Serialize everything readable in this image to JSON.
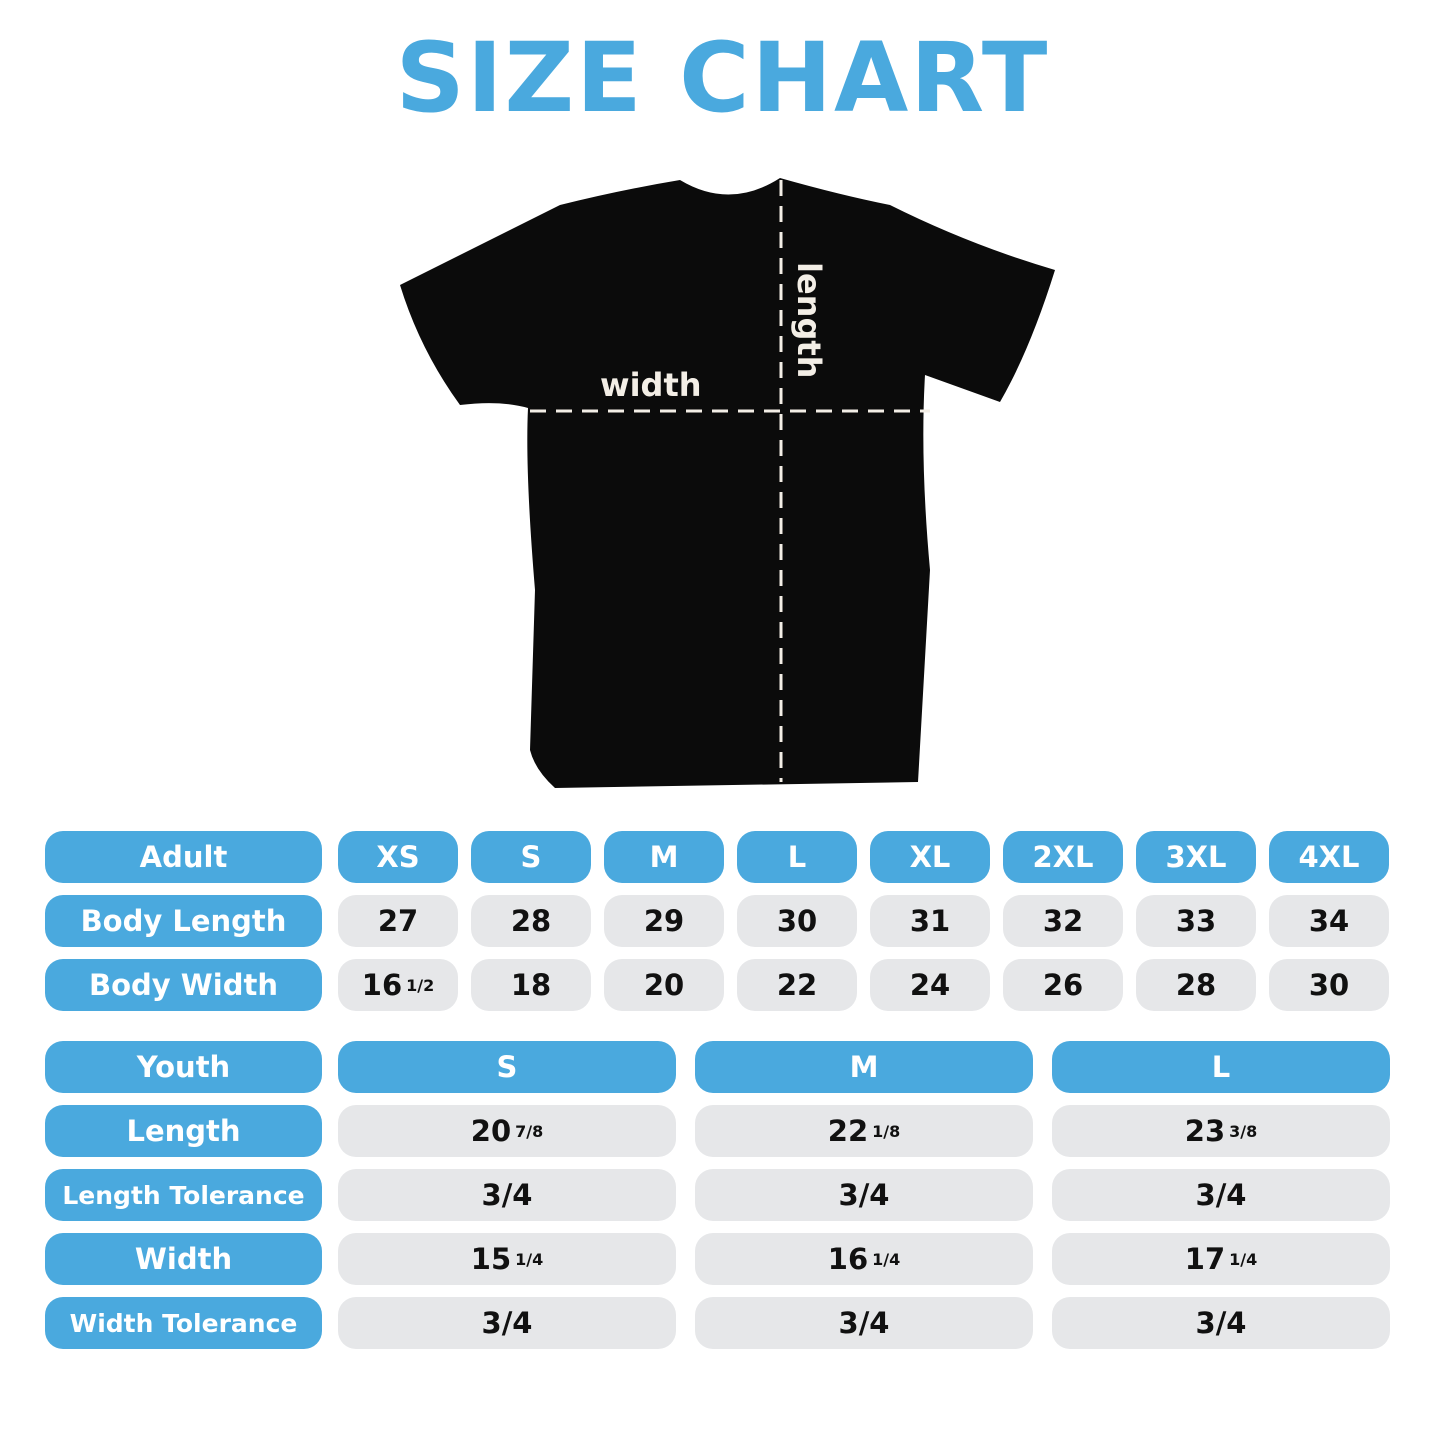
{
  "title": "SIZE CHART",
  "shirt": {
    "width_label": "width",
    "length_label": "length",
    "color": "#0b0b0b"
  },
  "colors": {
    "accent": "#4aa9de",
    "cell_gray": "#e6e7e9"
  },
  "adult": {
    "header": "Adult",
    "sizes": [
      "XS",
      "S",
      "M",
      "L",
      "XL",
      "2XL",
      "3XL",
      "4XL"
    ],
    "rows": [
      {
        "label": "Body Length",
        "values": [
          {
            "main": "27"
          },
          {
            "main": "28"
          },
          {
            "main": "29"
          },
          {
            "main": "30"
          },
          {
            "main": "31"
          },
          {
            "main": "32"
          },
          {
            "main": "33"
          },
          {
            "main": "34"
          }
        ]
      },
      {
        "label": "Body Width",
        "values": [
          {
            "main": "16",
            "frac": "1/2"
          },
          {
            "main": "18"
          },
          {
            "main": "20"
          },
          {
            "main": "22"
          },
          {
            "main": "24"
          },
          {
            "main": "26"
          },
          {
            "main": "28"
          },
          {
            "main": "30"
          }
        ]
      }
    ]
  },
  "youth": {
    "header": "Youth",
    "sizes": [
      "S",
      "M",
      "L"
    ],
    "rows": [
      {
        "label": "Length",
        "values": [
          {
            "main": "20",
            "frac": "7/8"
          },
          {
            "main": "22",
            "frac": "1/8"
          },
          {
            "main": "23",
            "frac": "3/8"
          }
        ]
      },
      {
        "label": "Length Tolerance",
        "values": [
          {
            "main": "3/4"
          },
          {
            "main": "3/4"
          },
          {
            "main": "3/4"
          }
        ]
      },
      {
        "label": "Width",
        "values": [
          {
            "main": "15",
            "frac": "1/4"
          },
          {
            "main": "16",
            "frac": "1/4"
          },
          {
            "main": "17",
            "frac": "1/4"
          }
        ]
      },
      {
        "label": "Width Tolerance",
        "values": [
          {
            "main": "3/4"
          },
          {
            "main": "3/4"
          },
          {
            "main": "3/4"
          }
        ]
      }
    ]
  }
}
